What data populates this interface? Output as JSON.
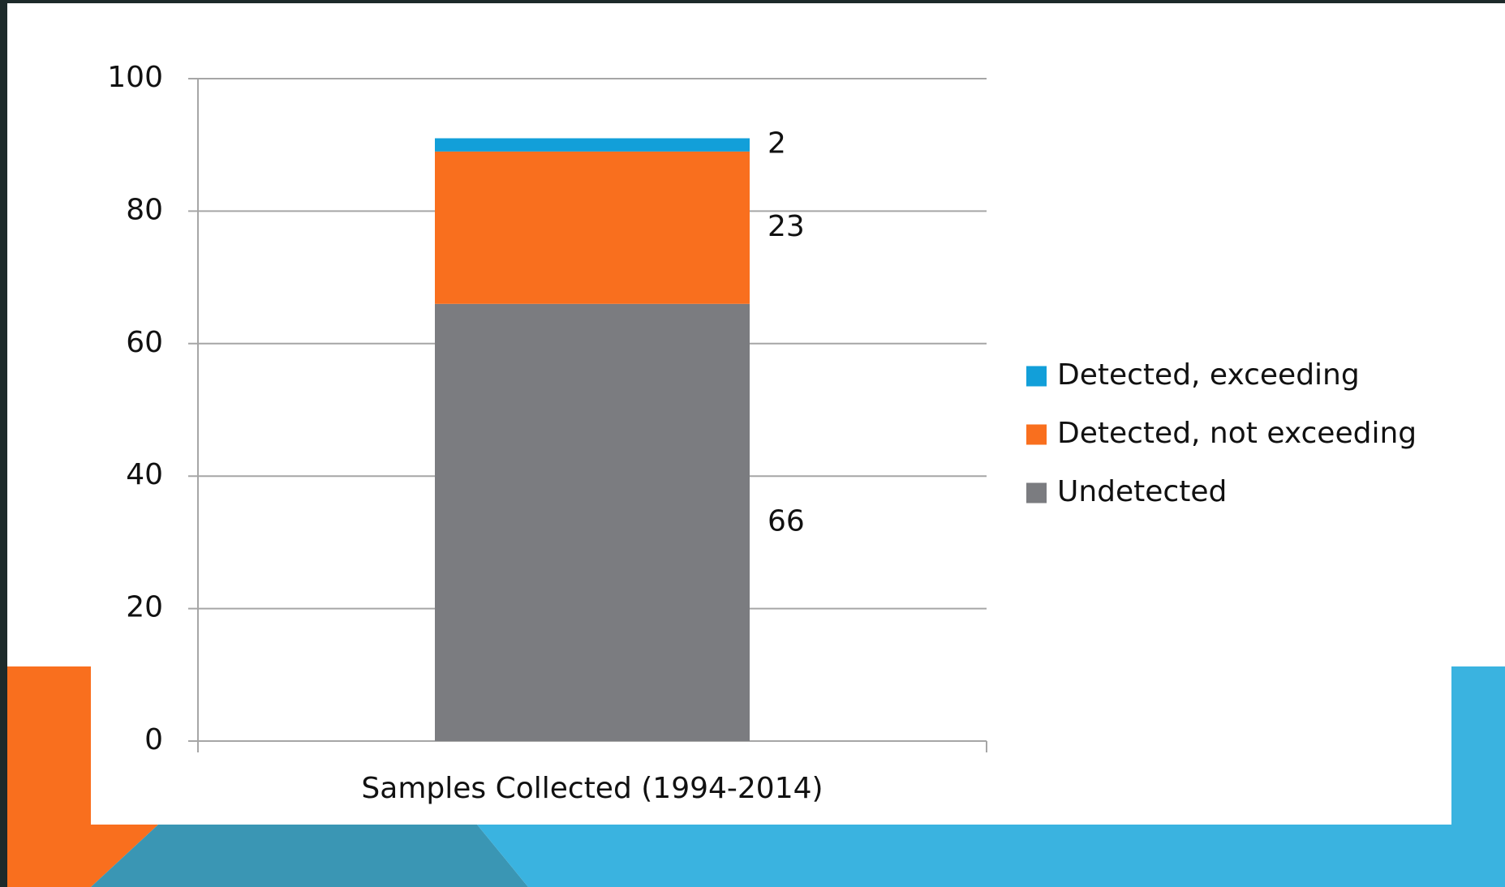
{
  "chart_data": {
    "type": "stacked_bar",
    "categories": [
      "Samples Collected (1994-2014)"
    ],
    "series": [
      {
        "name": "Undetected",
        "color": "#7b7c80",
        "values": [
          66
        ]
      },
      {
        "name": "Detected, not exceeding",
        "color": "#f96f1e",
        "values": [
          23
        ]
      },
      {
        "name": "Detected, exceeding",
        "color": "#129fd9",
        "values": [
          2
        ]
      }
    ],
    "ylim": [
      0,
      100
    ],
    "yticks": [
      0,
      20,
      40,
      60,
      80,
      100
    ],
    "grid": true,
    "legend": "right"
  }
}
